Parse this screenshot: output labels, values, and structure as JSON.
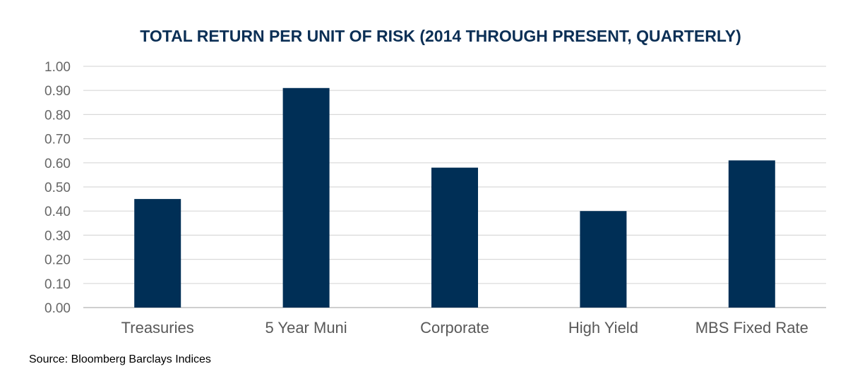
{
  "chart_data": {
    "type": "bar",
    "title": "TOTAL RETURN PER UNIT OF RISK (2014 THROUGH PRESENT, QUARTERLY)",
    "categories": [
      "Treasuries",
      "5 Year Muni",
      "Corporate",
      "High Yield",
      "MBS Fixed Rate"
    ],
    "values": [
      0.45,
      0.91,
      0.58,
      0.4,
      0.61
    ],
    "xlabel": "",
    "ylabel": "",
    "ylim": [
      0,
      1.0
    ],
    "yticks": [
      "0.00",
      "0.10",
      "0.20",
      "0.30",
      "0.40",
      "0.50",
      "0.60",
      "0.70",
      "0.80",
      "0.90",
      "1.00"
    ],
    "grid": true,
    "legend": "none",
    "bar_color": "#002f56"
  },
  "source": "Source:  Bloomberg Barclays Indices"
}
